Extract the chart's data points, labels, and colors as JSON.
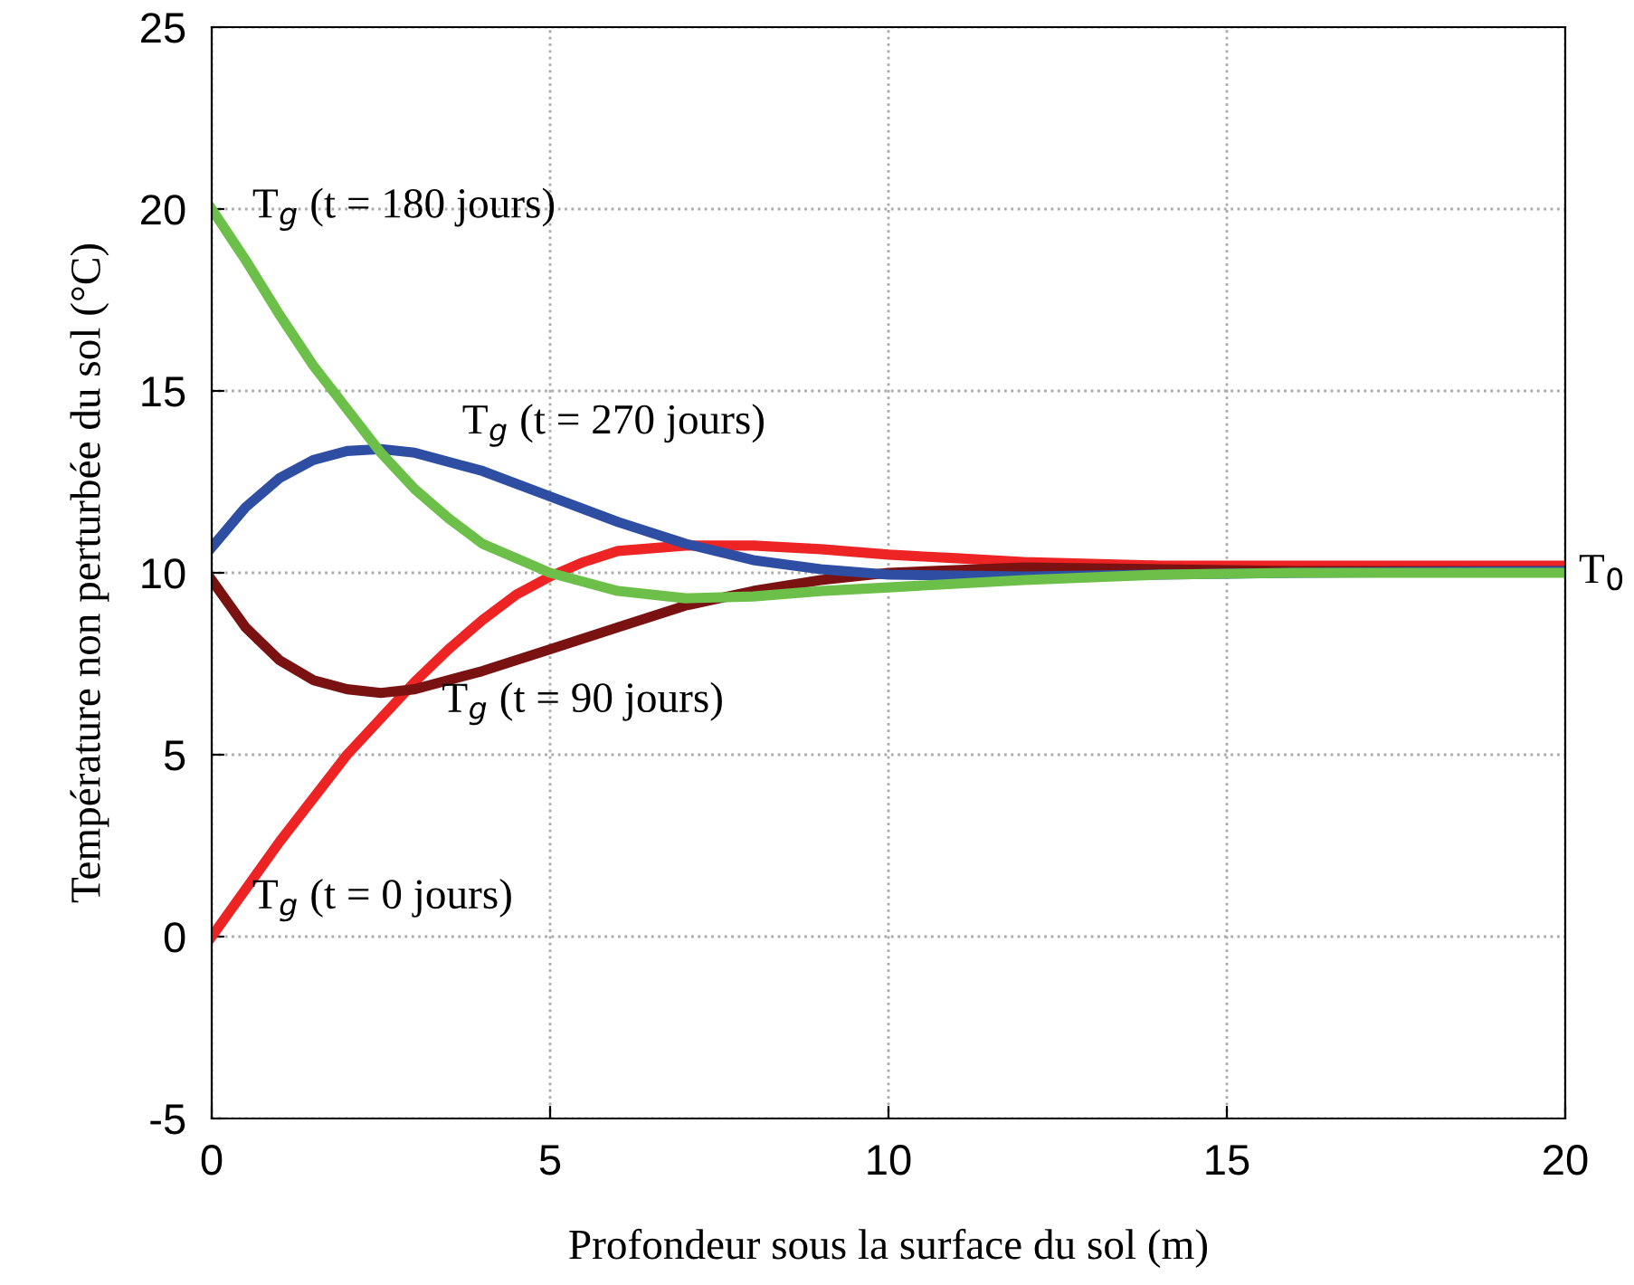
{
  "chart_data": {
    "type": "line",
    "xlabel": "Profondeur sous la surface du sol (m)",
    "ylabel": "Température non perturbée du sol (°C)",
    "xlim": [
      0,
      20
    ],
    "ylim": [
      -5,
      25
    ],
    "xticks": [
      0,
      5,
      10,
      15,
      20
    ],
    "yticks": [
      -5,
      0,
      5,
      10,
      15,
      20,
      25
    ],
    "grid": true,
    "line_style": "solid",
    "marker": "none",
    "series": [
      {
        "name": "T$_{g}$ (t = 0 jours)",
        "color": "#ee2424",
        "x": [
          0,
          0.5,
          1,
          1.5,
          2,
          2.5,
          3,
          3.5,
          4,
          4.5,
          5,
          5.5,
          6,
          7,
          8,
          9,
          10,
          11,
          12,
          14,
          16,
          20
        ],
        "values": [
          0,
          1.3,
          2.6,
          3.8,
          5.0,
          6.0,
          7.0,
          7.9,
          8.7,
          9.4,
          9.9,
          10.3,
          10.6,
          10.75,
          10.75,
          10.65,
          10.5,
          10.4,
          10.3,
          10.2,
          10.2,
          10.2
        ]
      },
      {
        "name": "T$_{g}$ (t = 90 jours)",
        "color": "#7a1212",
        "x": [
          0,
          0.5,
          1,
          1.5,
          2,
          2.5,
          3,
          4,
          5,
          6,
          7,
          8,
          9,
          10,
          12,
          14,
          16,
          20
        ],
        "values": [
          9.8,
          8.5,
          7.6,
          7.05,
          6.8,
          6.7,
          6.8,
          7.3,
          7.9,
          8.5,
          9.1,
          9.5,
          9.8,
          10.0,
          10.15,
          10.1,
          10.05,
          10.05
        ]
      },
      {
        "name": "T$_{g}$ (t = 270 jours)",
        "color": "#2e4ea3",
        "x": [
          0,
          0.5,
          1,
          1.5,
          2,
          2.5,
          3,
          4,
          5,
          6,
          7,
          8,
          9,
          10,
          12,
          14,
          16,
          20
        ],
        "values": [
          10.7,
          11.8,
          12.6,
          13.1,
          13.35,
          13.4,
          13.3,
          12.8,
          12.1,
          11.4,
          10.8,
          10.35,
          10.1,
          9.95,
          9.9,
          9.95,
          10.0,
          10.05
        ]
      },
      {
        "name": "T$_{g}$ (t = 180 jours)",
        "color": "#6cc04a",
        "x": [
          0,
          0.5,
          1,
          1.5,
          2,
          2.5,
          3,
          3.5,
          4,
          5,
          6,
          7,
          8,
          9,
          10,
          12,
          14,
          16,
          20
        ],
        "values": [
          20,
          18.6,
          17.1,
          15.7,
          14.5,
          13.3,
          12.3,
          11.5,
          10.8,
          10.0,
          9.5,
          9.3,
          9.35,
          9.5,
          9.6,
          9.8,
          9.95,
          10.0,
          10.0
        ]
      }
    ],
    "annotations": [
      "T$_{0}$"
    ]
  }
}
